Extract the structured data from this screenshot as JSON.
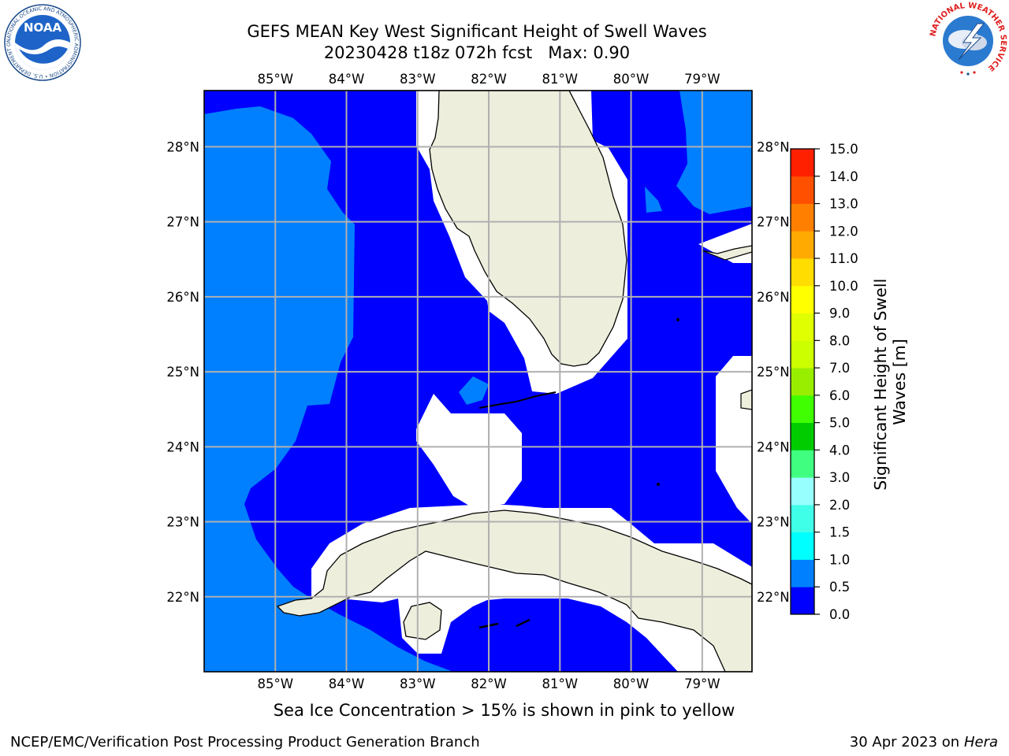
{
  "title": {
    "line1": "GEFS MEAN Key West Significant Height of Swell Waves",
    "line2": "20230428 t18z 072h fcst   Max: 0.90"
  },
  "map": {
    "lon_ticks": [
      "85°W",
      "84°W",
      "83°W",
      "82°W",
      "81°W",
      "80°W",
      "79°W"
    ],
    "lat_ticks": [
      "28°N",
      "27°N",
      "26°N",
      "25°N",
      "24°N",
      "23°N",
      "22°N"
    ],
    "lon_values": [
      -85,
      -84,
      -83,
      -82,
      -81,
      -80,
      -79
    ],
    "lat_values": [
      28,
      27,
      26,
      25,
      24,
      23,
      22
    ],
    "lon_range": [
      -86.0,
      -78.3
    ],
    "lat_range": [
      21.0,
      28.75
    ],
    "colors": {
      "band_0_0_5": "#0000ff",
      "band_0_5_1_0": "#0080ff",
      "land": "#eeeedd",
      "grid": "#b0b0b0"
    }
  },
  "colorbar": {
    "label": "Significant Height of Swell Waves [m]",
    "label_lines": [
      "Significant Height of Swell",
      "Waves [m]"
    ],
    "tick_labels": [
      "0.0",
      "0.5",
      "1.0",
      "1.5",
      "2.0",
      "3.0",
      "4.0",
      "5.0",
      "6.0",
      "7.0",
      "8.0",
      "9.0",
      "10.0",
      "11.0",
      "12.0",
      "13.0",
      "14.0",
      "15.0"
    ],
    "colors": [
      "#0000ff",
      "#0080ff",
      "#00ffff",
      "#40ffe8",
      "#98ffff",
      "#40ff80",
      "#00cc00",
      "#40ff00",
      "#99ee00",
      "#ccff00",
      "#e0ff00",
      "#ffff00",
      "#ffdd00",
      "#ffaa00",
      "#ff8000",
      "#ff5000",
      "#ff2000"
    ]
  },
  "notes": {
    "sea_ice": "Sea Ice Concentration > 15% is shown in pink to yellow"
  },
  "footer": {
    "left": "NCEP/EMC/Verification Post Processing Product Generation Branch",
    "right_prefix": "30 Apr 2023 on ",
    "right_host": "Hera"
  },
  "logos": {
    "noaa_text": "NOAA",
    "noaa_ring": "NATIONAL OCEANIC AND ATMOSPHERIC ADMINISTRATION • U.S. DEPARTMENT OF COMMERCE •",
    "nws_ring": "NATIONAL WEATHER SERVICE"
  }
}
